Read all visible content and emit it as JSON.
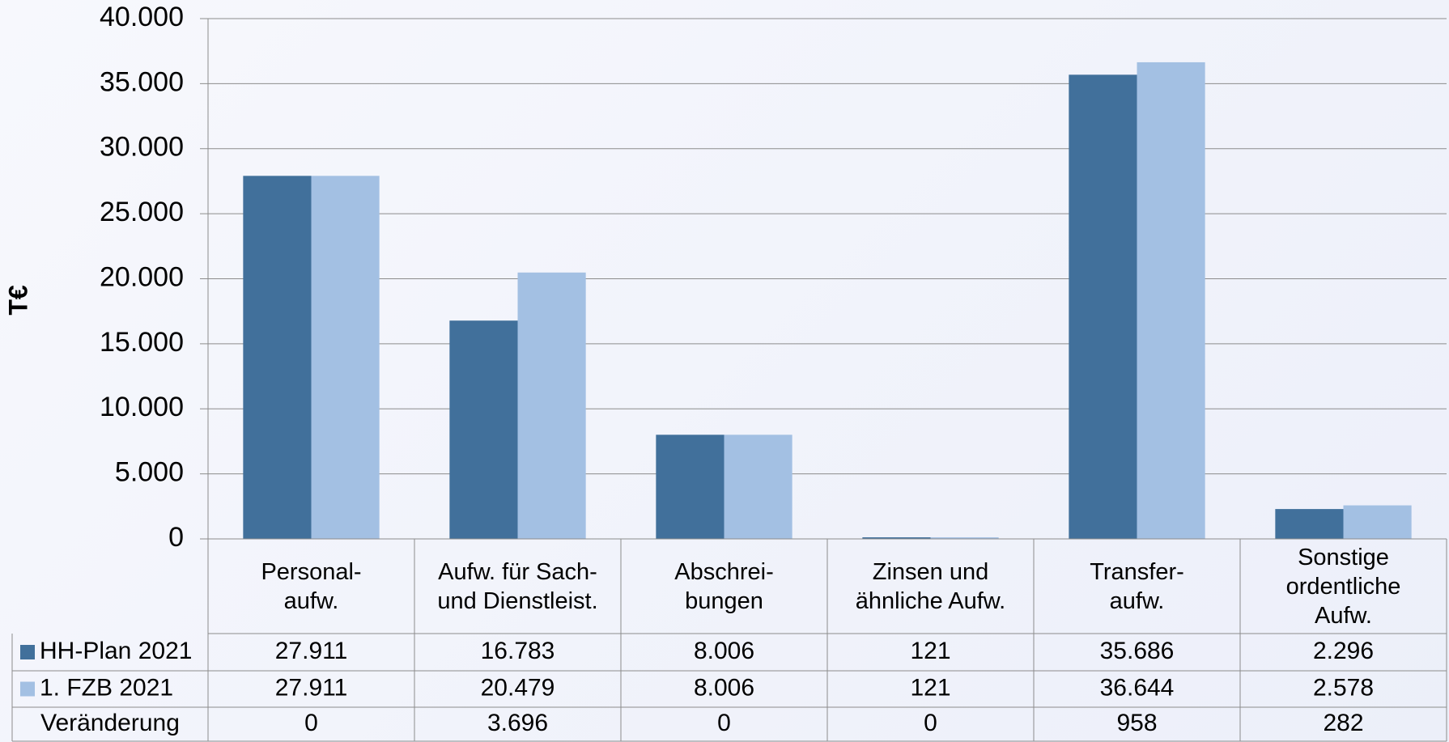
{
  "chart_data": {
    "type": "bar",
    "y_label": "T€",
    "categories": [
      "Personal-\naufw.",
      "Aufw. für Sach-\nund Dienstleist.",
      "Abschrei-\nbungen",
      "Zinsen und\nähnliche Aufw.",
      "Transfer-\naufw.",
      "Sonstige\nordentliche\nAufw."
    ],
    "series": [
      {
        "name": "HH-Plan 2021",
        "color": "#41709b",
        "values": [
          27911,
          16783,
          8006,
          121,
          35686,
          2296
        ],
        "value_labels": [
          "27.911",
          "16.783",
          "8.006",
          "121",
          "35.686",
          "2.296"
        ]
      },
      {
        "name": "1. FZB 2021",
        "color": "#a3c0e3",
        "values": [
          27911,
          20479,
          8006,
          121,
          36644,
          2578
        ],
        "value_labels": [
          "27.911",
          "20.479",
          "8.006",
          "121",
          "36.644",
          "2.578"
        ]
      }
    ],
    "difference_row": {
      "name": "Veränderung",
      "values": [
        0,
        3696,
        0,
        0,
        958,
        282
      ],
      "value_labels": [
        "0",
        "3.696",
        "0",
        "0",
        "958",
        "282"
      ]
    },
    "ylim": [
      0,
      40000
    ],
    "yticks": [
      0,
      {
        "value": 5000,
        "label": "5.000"
      },
      {
        "value": 10000,
        "label": "10.000"
      },
      {
        "value": 15000,
        "label": "15.000"
      },
      {
        "value": 20000,
        "label": "20.000"
      },
      {
        "value": 25000,
        "label": "25.000"
      },
      {
        "value": 30000,
        "label": "30.000"
      },
      {
        "value": 35000,
        "label": "35.000"
      },
      {
        "value": 40000,
        "label": "40.000"
      }
    ],
    "grid": true
  }
}
